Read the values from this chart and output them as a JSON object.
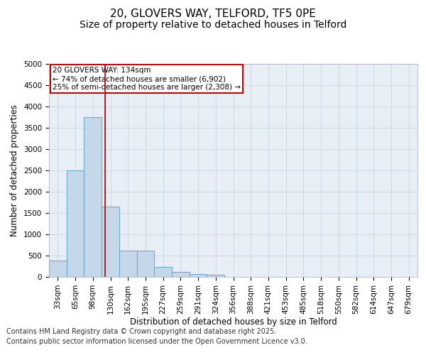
{
  "title_line1": "20, GLOVERS WAY, TELFORD, TF5 0PE",
  "title_line2": "Size of property relative to detached houses in Telford",
  "xlabel": "Distribution of detached houses by size in Telford",
  "ylabel": "Number of detached properties",
  "categories": [
    "33sqm",
    "65sqm",
    "98sqm",
    "130sqm",
    "162sqm",
    "195sqm",
    "227sqm",
    "259sqm",
    "291sqm",
    "324sqm",
    "356sqm",
    "388sqm",
    "421sqm",
    "453sqm",
    "485sqm",
    "518sqm",
    "550sqm",
    "582sqm",
    "614sqm",
    "647sqm",
    "679sqm"
  ],
  "bar_values": [
    380,
    2500,
    3750,
    1650,
    620,
    620,
    230,
    120,
    60,
    50,
    0,
    0,
    0,
    0,
    0,
    0,
    0,
    0,
    0,
    0,
    0
  ],
  "bar_color": "#c5d8ea",
  "bar_edge_color": "#6aabcf",
  "vline_x_index": 3,
  "vline_color": "#aa0000",
  "annotation_text": "20 GLOVERS WAY: 134sqm\n← 74% of detached houses are smaller (6,902)\n25% of semi-detached houses are larger (2,308) →",
  "annotation_box_color": "#ffffff",
  "annotation_box_edge_color": "#cc0000",
  "ylim": [
    0,
    5000
  ],
  "yticks": [
    0,
    500,
    1000,
    1500,
    2000,
    2500,
    3000,
    3500,
    4000,
    4500,
    5000
  ],
  "grid_color": "#c8d4e4",
  "bg_color": "#e8eef6",
  "footer_line1": "Contains HM Land Registry data © Crown copyright and database right 2025.",
  "footer_line2": "Contains public sector information licensed under the Open Government Licence v3.0.",
  "title_fontsize": 11,
  "subtitle_fontsize": 10,
  "tick_fontsize": 7.5,
  "label_fontsize": 8.5,
  "footer_fontsize": 7
}
